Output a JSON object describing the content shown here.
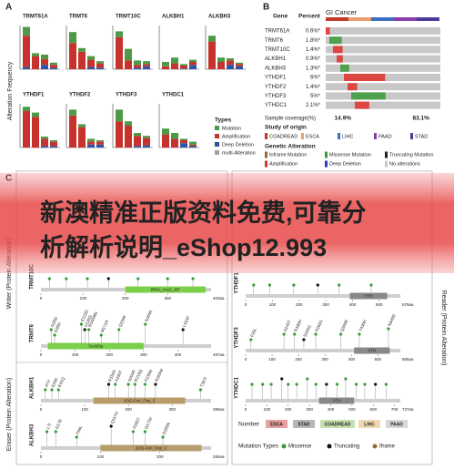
{
  "panel_a": {
    "label": "A",
    "y_axis": "Alteration Frequency",
    "ylim": [
      0,
      6
    ],
    "charts": [
      {
        "gene": "TRMT61A",
        "bars": [
          [
            1.2,
            4.3,
            0.3
          ],
          [
            0.4,
            1.8,
            0
          ],
          [
            0.6,
            0.8,
            0.6
          ],
          [
            0.3,
            0.4,
            0.2
          ]
        ]
      },
      {
        "gene": "TRMT6",
        "bars": [
          [
            1.5,
            3.6,
            0
          ],
          [
            0.5,
            2.4,
            0
          ],
          [
            0.5,
            1.0,
            0.3
          ],
          [
            0.3,
            0.6,
            0.2
          ]
        ]
      },
      {
        "gene": "TRMT10C",
        "bars": [
          [
            0.8,
            4.4,
            0
          ],
          [
            1.6,
            1.2,
            0
          ],
          [
            0.6,
            0.4,
            0.2
          ],
          [
            0.4,
            0.3,
            0.4
          ]
        ]
      },
      {
        "gene": "ALKBH1",
        "bars": [
          [
            0.6,
            0.4,
            0
          ],
          [
            0.8,
            0.8,
            0
          ],
          [
            0.2,
            0.4,
            0.1
          ],
          [
            0.3,
            0.4,
            0.6
          ]
        ]
      },
      {
        "gene": "ALKBH3",
        "bars": [
          [
            0.8,
            3.8,
            0
          ],
          [
            0.6,
            1.0,
            0
          ],
          [
            0.3,
            0.6,
            0.6
          ],
          [
            0.2,
            0.3,
            0.4
          ]
        ]
      },
      {
        "gene": "YTHDF1",
        "bars": [
          [
            0.6,
            5.0,
            0
          ],
          [
            0.6,
            4.2,
            0
          ],
          [
            0.3,
            1.0,
            0.2
          ],
          [
            0.2,
            0.6,
            0.2
          ]
        ]
      },
      {
        "gene": "YTHDF2",
        "bars": [
          [
            0.8,
            4.4,
            0
          ],
          [
            0.4,
            2.8,
            0
          ],
          [
            0.4,
            0.4,
            0.4
          ],
          [
            0.2,
            0.4,
            0.4
          ]
        ]
      },
      {
        "gene": "YTHDF3",
        "bars": [
          [
            1.6,
            3.6,
            0
          ],
          [
            0.6,
            3.0,
            0
          ],
          [
            0.4,
            1.4,
            0.2
          ],
          [
            0.3,
            1.0,
            0.3
          ]
        ]
      },
      {
        "gene": "YTHDC1",
        "bars": [
          [
            0.8,
            1.8,
            0
          ],
          [
            0.8,
            1.2,
            0
          ],
          [
            0.2,
            0.4,
            0.6
          ],
          [
            0.4,
            0.2,
            0.2
          ]
        ]
      }
    ],
    "legend": {
      "title": "Types",
      "items": [
        {
          "name": "Mutation",
          "color": "#4c9a45"
        },
        {
          "name": "Amplification",
          "color": "#c8322c"
        },
        {
          "name": "Deep Deletion",
          "color": "#2e55a5"
        },
        {
          "name": "multi-Alteration",
          "color": "#a0a0a0"
        }
      ]
    }
  },
  "panel_b": {
    "label": "B",
    "gene_header": "Gene",
    "percent_header": "Percent",
    "cohort": "GI Cancer",
    "rows": [
      {
        "gene": "TRMT61A",
        "value": 0.6,
        "label": "0.6%*"
      },
      {
        "gene": "TRMT6",
        "value": 1.8,
        "label": "1.8%*"
      },
      {
        "gene": "TRMT10C",
        "value": 1.4,
        "label": "1.4%*"
      },
      {
        "gene": "ALKBH1",
        "value": 0.9,
        "label": "0.9%*"
      },
      {
        "gene": "ALKBH3",
        "value": 1.3,
        "label": "1.3%*"
      },
      {
        "gene": "YTHDF1",
        "value": 6,
        "label": "6%*"
      },
      {
        "gene": "YTHDF2",
        "value": 1.4,
        "label": "1.4%*"
      },
      {
        "gene": "YTHDF3",
        "value": 5,
        "label": "5%*"
      },
      {
        "gene": "YTHDC1",
        "value": 2.1,
        "label": "2.1%*"
      }
    ],
    "coverage_label": "Sample coverage(%)",
    "coverage": [
      {
        "value": 14.9,
        "label": "14.9%"
      },
      {
        "value": 83.1,
        "label": "83.1%"
      }
    ],
    "study_title": "Study of origin",
    "studies": [
      {
        "name": "COADREAD",
        "color": "#c0392b"
      },
      {
        "name": "ESCA",
        "color": "#e8a070"
      },
      {
        "name": "LIHC",
        "color": "#3a6fc4"
      },
      {
        "name": "PAAD",
        "color": "#8a3fa8"
      },
      {
        "name": "STAD",
        "color": "#4a3a9a"
      }
    ],
    "alteration_title": "Genetic Alteration",
    "alterations": [
      {
        "name": "Inframe Mutation",
        "color": "#9a6a3a"
      },
      {
        "name": "Missense Mutation",
        "color": "#3a9a3a"
      },
      {
        "name": "Truncating Mutation",
        "color": "#222222"
      },
      {
        "name": "Amplification",
        "color": "#e0302a"
      },
      {
        "name": "Deep Deletion",
        "color": "#2040c0"
      },
      {
        "name": "No alterations",
        "color": "#c8c8c8"
      }
    ]
  },
  "banner": {
    "lines": [
      "新澳精准正版资料免费,可靠分",
      "析解析说明_eShop12.993"
    ]
  },
  "panel_c": {
    "label": "C",
    "groups": [
      "Writer (Protein Alteration)",
      "Eraser (Protein Alteration)",
      "Reader (Protein Alteration)"
    ],
    "tracks": [
      {
        "gene": "TRMT10C",
        "length": {
          "value": 403,
          "label": "403aa"
        },
        "ticks": [
          0,
          100,
          200,
          300
        ],
        "domain": {
          "name": "tRNA_m1G_MT",
          "start": 200,
          "end": 390,
          "color": "#7ccf4a"
        },
        "mutations": [
          {
            "pos": 20,
            "h": 1
          },
          {
            "pos": 60,
            "h": 1
          },
          {
            "pos": 110,
            "h": 1
          },
          {
            "pos": 160,
            "h": 1
          },
          {
            "pos": 230,
            "h": 1
          },
          {
            "pos": 300,
            "h": 1
          },
          {
            "pos": 360,
            "h": 1
          }
        ]
      },
      {
        "gene": "TRMT6",
        "length": {
          "value": 497,
          "label": "497aa"
        },
        "ticks": [
          0,
          100,
          200,
          300,
          400
        ],
        "domain": {
          "name": "Gcd10p",
          "start": 20,
          "end": 300,
          "color": "#7ccf4a"
        },
        "mutations": [
          {
            "pos": 30,
            "h": 2,
            "label": "G28D"
          },
          {
            "pos": 40,
            "h": 1,
            "label": "G38D"
          },
          {
            "pos": 118,
            "h": 3,
            "label": "E122D"
          },
          {
            "pos": 128,
            "h": 2,
            "label": "V126G"
          },
          {
            "pos": 140,
            "h": 2,
            "label": "R140Mfs"
          },
          {
            "pos": 176,
            "h": 1,
            "label": "M171R"
          },
          {
            "pos": 228,
            "h": 2,
            "label": "Q228K"
          },
          {
            "pos": 305,
            "h": 3,
            "label": "N305K"
          },
          {
            "pos": 415,
            "h": 2,
            "label": "L415F"
          }
        ]
      },
      {
        "gene": "ALKBH1",
        "length": {
          "value": 389,
          "label": "389aa"
        },
        "ticks": [
          0,
          100,
          200,
          300
        ],
        "domain": {
          "name": "2OG-FeII_Oxy_2",
          "start": 120,
          "end": 330,
          "color": "#b99c6b"
        },
        "mutations": [
          {
            "pos": 10,
            "h": 1,
            "label": "A7V"
          },
          {
            "pos": 25,
            "h": 1,
            "label": "E25K"
          },
          {
            "pos": 40,
            "h": 1,
            "label": "E41Q"
          },
          {
            "pos": 155,
            "h": 2,
            "label": "R156S"
          },
          {
            "pos": 170,
            "h": 2,
            "label": "A190T"
          },
          {
            "pos": 200,
            "h": 2,
            "label": "S204R"
          },
          {
            "pos": 215,
            "h": 2,
            "label": "R219Q"
          },
          {
            "pos": 238,
            "h": 2,
            "label": "F239M"
          },
          {
            "pos": 262,
            "h": 2,
            "label": "R263W"
          },
          {
            "pos": 365,
            "h": 1,
            "label": "T367I"
          }
        ]
      },
      {
        "gene": "ALKBH3",
        "length": {
          "value": 286,
          "label": "286aa"
        },
        "ticks": [
          0,
          100,
          200
        ],
        "domain": {
          "name": "2OG-FeII_Oxy_2",
          "start": 100,
          "end": 270,
          "color": "#b99c6b"
        },
        "mutations": [
          {
            "pos": 10,
            "h": 2,
            "label": "L7I"
          },
          {
            "pos": 25,
            "h": 2,
            "label": "G17E"
          },
          {
            "pos": 60,
            "h": 1,
            "label": "F56L"
          },
          {
            "pos": 118,
            "h": 3,
            "label": "Q117H"
          },
          {
            "pos": 155,
            "h": 2,
            "label": "A155T"
          },
          {
            "pos": 175,
            "h": 2,
            "label": "G173V"
          },
          {
            "pos": 205,
            "h": 1,
            "label": "D205N"
          }
        ]
      },
      {
        "gene": "YTHDF1",
        "length": {
          "value": 579,
          "label": "579aa"
        },
        "ticks": [
          0,
          100,
          200,
          300,
          400,
          500
        ],
        "domain": {
          "name": "YTH",
          "start": 390,
          "end": 530,
          "color": "#888888"
        },
        "mutations": [
          {
            "pos": 30,
            "h": 1
          },
          {
            "pos": 90,
            "h": 1
          },
          {
            "pos": 180,
            "h": 1
          },
          {
            "pos": 270,
            "h": 1
          },
          {
            "pos": 350,
            "h": 1
          },
          {
            "pos": 470,
            "h": 1
          }
        ]
      },
      {
        "gene": "YTHDF3",
        "length": {
          "value": 585,
          "label": "585aa"
        },
        "ticks": [
          0,
          100,
          200,
          300,
          400,
          500
        ],
        "domain": {
          "name": "YTH",
          "start": 410,
          "end": 545,
          "color": "#888888"
        },
        "mutations": [
          {
            "pos": 20,
            "h": 1,
            "label": "F20L"
          },
          {
            "pos": 145,
            "h": 2,
            "label": "A145T"
          },
          {
            "pos": 185,
            "h": 2,
            "label": "R185H"
          },
          {
            "pos": 220,
            "h": 1,
            "label": "S220G"
          },
          {
            "pos": 265,
            "h": 2,
            "label": "P265S"
          },
          {
            "pos": 360,
            "h": 2,
            "label": "Q360E"
          },
          {
            "pos": 430,
            "h": 2,
            "label": "Y430H"
          },
          {
            "pos": 540,
            "h": 3,
            "label": "N540D"
          }
        ]
      },
      {
        "gene": "YTHDC1",
        "length": {
          "value": 727,
          "label": "727aa"
        },
        "ticks": [
          0,
          100,
          200,
          300,
          400,
          500,
          600,
          700
        ],
        "domain": {
          "name": "YTH",
          "start": 345,
          "end": 510,
          "color": "#888888"
        },
        "mutations": [
          {
            "pos": 30,
            "h": 2
          },
          {
            "pos": 80,
            "h": 2
          },
          {
            "pos": 120,
            "h": 2
          },
          {
            "pos": 170,
            "h": 3
          },
          {
            "pos": 200,
            "h": 2
          },
          {
            "pos": 240,
            "h": 2
          },
          {
            "pos": 290,
            "h": 3
          },
          {
            "pos": 330,
            "h": 2
          },
          {
            "pos": 380,
            "h": 2
          },
          {
            "pos": 430,
            "h": 2
          },
          {
            "pos": 470,
            "h": 3
          },
          {
            "pos": 520,
            "h": 2
          },
          {
            "pos": 560,
            "h": 2
          },
          {
            "pos": 610,
            "h": 2
          },
          {
            "pos": 660,
            "h": 2
          }
        ]
      }
    ],
    "number_title": "Number",
    "number_items": [
      {
        "name": "ESCA",
        "color": "#e8a0a0"
      },
      {
        "name": "STAD",
        "color": "#b8b8b8"
      },
      {
        "name": "COADREAD",
        "color": "#c8e0b0"
      },
      {
        "name": "LIHC",
        "color": "#f0d8b0"
      },
      {
        "name": "PAAD",
        "color": "#d8d8d8"
      }
    ],
    "mutation_title": "Mutation Types",
    "mutation_types": [
      {
        "name": "Missense",
        "color": "#3a9a3a"
      },
      {
        "name": "Truncating",
        "color": "#111111"
      },
      {
        "name": "Iframe",
        "color": "#9a6a3a"
      }
    ]
  }
}
